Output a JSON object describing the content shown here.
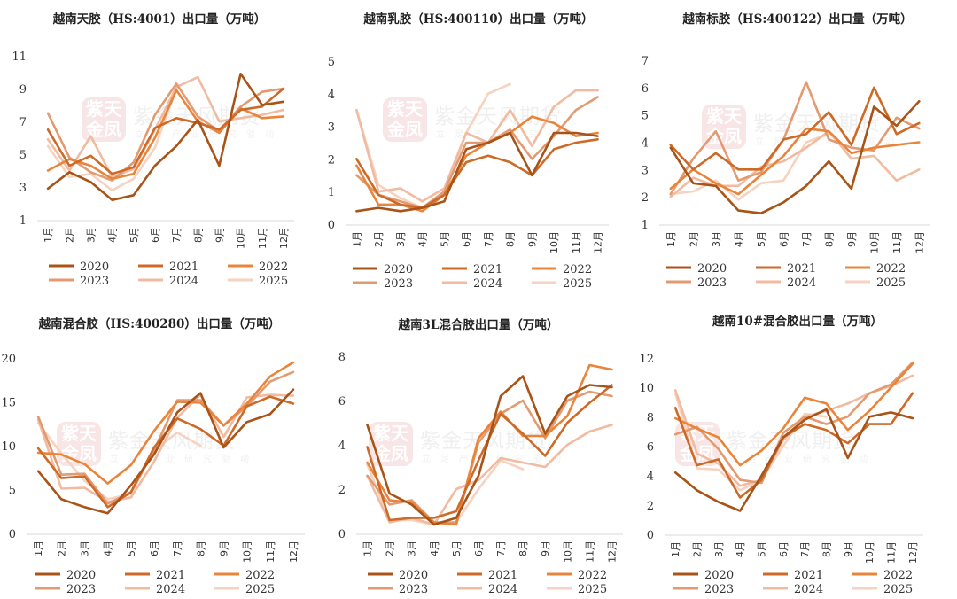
{
  "colors": {
    "2020": "#A85318",
    "2021": "#CD6A28",
    "2022": "#E9843A",
    "2023": "#E49A70",
    "2024": "#F0BBA0",
    "2025": "#F6D2C0"
  },
  "watermark": {
    "seal": "紫天金凤",
    "brand": "紫金天风期货",
    "slogan": "立足产业研究驱动"
  },
  "months": [
    "1月",
    "2月",
    "3月",
    "4月",
    "5月",
    "6月",
    "7月",
    "8月",
    "9月",
    "10月",
    "11月",
    "12月"
  ],
  "chart_data": [
    {
      "type": "line",
      "title": "越南天胶（HS:4001）出口量（万吨）",
      "ylim": [
        1,
        11
      ],
      "yticks": [
        1,
        3,
        5,
        7,
        9,
        11
      ],
      "legend_position": "bottom",
      "series": [
        {
          "name": "2020",
          "values": [
            2.9,
            3.9,
            3.3,
            2.2,
            2.5,
            4.3,
            5.5,
            7.1,
            4.3,
            9.9,
            8.0,
            8.2
          ]
        },
        {
          "name": "2021",
          "values": [
            6.5,
            4.3,
            4.9,
            3.8,
            4.2,
            6.6,
            7.2,
            6.9,
            6.5,
            7.7,
            7.9,
            9.0
          ]
        },
        {
          "name": "2022",
          "values": [
            4.0,
            4.7,
            4.3,
            3.5,
            3.8,
            6.0,
            8.9,
            7.0,
            6.3,
            7.8,
            7.2,
            7.3
          ]
        },
        {
          "name": "2023",
          "values": [
            7.5,
            4.8,
            3.9,
            3.4,
            4.5,
            7.4,
            9.3,
            7.3,
            6.4,
            7.9,
            8.8,
            9.0
          ]
        },
        {
          "name": "2024",
          "values": [
            5.9,
            4.0,
            6.1,
            3.6,
            4.1,
            6.5,
            9.1,
            9.7,
            7.0,
            7.2,
            7.4,
            7.7
          ]
        },
        {
          "name": "2025",
          "values": [
            5.5,
            3.6,
            3.8,
            2.8,
            3.5,
            5.4,
            9.0
          ]
        }
      ]
    },
    {
      "type": "line",
      "title": "越南乳胶（HS:400110）出口量（万吨）",
      "ylim": [
        0,
        5
      ],
      "yticks": [
        0,
        1,
        2,
        3,
        4,
        5
      ],
      "legend_position": "bottom",
      "series": [
        {
          "name": "2020",
          "values": [
            0.4,
            0.5,
            0.4,
            0.5,
            0.7,
            2.3,
            2.5,
            2.8,
            1.5,
            2.8,
            2.8,
            2.7
          ]
        },
        {
          "name": "2021",
          "values": [
            2.0,
            0.9,
            0.6,
            0.5,
            0.9,
            1.9,
            2.1,
            1.9,
            1.5,
            2.3,
            2.5,
            2.6
          ]
        },
        {
          "name": "2022",
          "values": [
            1.8,
            0.6,
            0.6,
            0.4,
            0.9,
            2.1,
            2.5,
            2.8,
            3.3,
            3.1,
            2.7,
            2.8
          ]
        },
        {
          "name": "2023",
          "values": [
            1.5,
            0.9,
            0.7,
            0.5,
            1.0,
            2.5,
            2.5,
            2.9,
            2.0,
            2.7,
            3.5,
            3.9
          ]
        },
        {
          "name": "2024",
          "values": [
            3.5,
            1.0,
            1.1,
            0.7,
            1.1,
            2.8,
            2.5,
            3.5,
            2.4,
            3.6,
            4.1,
            4.1
          ]
        },
        {
          "name": "2025",
          "values": [
            3.5,
            1.2,
            0.8,
            0.5,
            0.9,
            2.8,
            4.0,
            4.3
          ]
        }
      ]
    },
    {
      "type": "line",
      "title": "越南标胶（HS:400122）出口量（万吨）",
      "ylim": [
        1,
        7
      ],
      "yticks": [
        1,
        2,
        3,
        4,
        5,
        6,
        7
      ],
      "legend_position": "bottom",
      "series": [
        {
          "name": "2020",
          "values": [
            3.8,
            2.5,
            2.4,
            1.5,
            1.4,
            1.8,
            2.4,
            3.3,
            2.3,
            5.3,
            4.6,
            5.5
          ]
        },
        {
          "name": "2021",
          "values": [
            3.9,
            3.0,
            3.6,
            3.0,
            3.0,
            4.1,
            4.3,
            5.1,
            3.9,
            6.0,
            4.3,
            4.7
          ]
        },
        {
          "name": "2022",
          "values": [
            2.3,
            3.0,
            2.5,
            2.1,
            2.8,
            3.5,
            4.5,
            4.4,
            3.6,
            3.8,
            3.9,
            4.0
          ]
        },
        {
          "name": "2023",
          "values": [
            2.1,
            3.4,
            4.4,
            2.6,
            2.9,
            4.1,
            6.2,
            4.1,
            3.8,
            3.7,
            4.9,
            4.5
          ]
        },
        {
          "name": "2024",
          "values": [
            2.0,
            2.7,
            2.4,
            2.4,
            3.1,
            3.3,
            3.8,
            4.4,
            3.4,
            3.5,
            2.6,
            3.0
          ]
        },
        {
          "name": "2025",
          "values": [
            2.1,
            2.2,
            2.6,
            1.9,
            2.5,
            2.6,
            4.0,
            4.3
          ]
        }
      ]
    },
    {
      "type": "line",
      "title": "越南混合胶（HS:400280）出口量（万吨）",
      "ylim": [
        0,
        20
      ],
      "yticks": [
        0,
        5,
        10,
        15,
        20
      ],
      "legend_position": "bottom",
      "series": [
        {
          "name": "2020",
          "values": [
            7.1,
            3.9,
            3.0,
            2.3,
            5.5,
            9.0,
            13.8,
            16.0,
            9.8,
            12.7,
            13.6,
            16.4
          ]
        },
        {
          "name": "2021",
          "values": [
            9.7,
            6.3,
            6.5,
            3.0,
            4.7,
            9.8,
            13.1,
            11.9,
            10.0,
            14.5,
            15.6,
            14.8
          ]
        },
        {
          "name": "2022",
          "values": [
            9.2,
            9.0,
            7.9,
            5.7,
            7.8,
            11.7,
            15.0,
            14.9,
            12.3,
            14.8,
            17.9,
            19.5
          ]
        },
        {
          "name": "2023",
          "values": [
            13.3,
            6.7,
            6.8,
            3.4,
            4.7,
            9.5,
            15.2,
            15.2,
            12.3,
            14.5,
            17.3,
            18.4
          ]
        },
        {
          "name": "2024",
          "values": [
            13.0,
            5.1,
            5.2,
            3.6,
            4.1,
            8.2,
            13.2,
            15.8,
            11.0,
            15.5,
            15.8,
            15.7
          ]
        },
        {
          "name": "2025",
          "values": [
            12.6,
            9.1,
            6.0,
            3.9,
            4.5,
            9.5,
            11.5,
            10.0
          ]
        }
      ]
    },
    {
      "type": "line",
      "title": "越南3L混合胶出口量（万吨）",
      "ylim": [
        0,
        8
      ],
      "yticks": [
        0,
        2,
        4,
        6,
        8
      ],
      "legend_position": "bottom",
      "series": [
        {
          "name": "2020",
          "values": [
            4.9,
            1.8,
            1.3,
            0.4,
            0.7,
            2.6,
            6.2,
            7.1,
            4.5,
            6.2,
            6.7,
            6.6
          ]
        },
        {
          "name": "2021",
          "values": [
            3.9,
            0.6,
            0.7,
            0.7,
            1.0,
            3.3,
            5.4,
            4.5,
            3.5,
            5.0,
            5.9,
            6.7
          ]
        },
        {
          "name": "2022",
          "values": [
            3.2,
            1.5,
            1.4,
            0.5,
            0.4,
            4.3,
            5.5,
            4.4,
            4.4,
            5.3,
            7.6,
            7.4
          ]
        },
        {
          "name": "2023",
          "values": [
            2.6,
            1.3,
            1.5,
            0.5,
            0.5,
            4.1,
            5.4,
            6.0,
            4.3,
            6.0,
            6.4,
            6.2
          ]
        },
        {
          "name": "2024",
          "values": [
            2.6,
            0.5,
            0.7,
            0.4,
            2.0,
            2.4,
            3.4,
            3.2,
            3.0,
            4.0,
            4.6,
            4.9
          ]
        },
        {
          "name": "2025",
          "values": [
            3.1,
            0.6,
            0.6,
            0.4,
            0.5,
            2.0,
            3.3,
            2.9
          ]
        }
      ]
    },
    {
      "type": "line",
      "title": "越南10#混合胶出口量（万吨）",
      "ylim": [
        0,
        12
      ],
      "yticks": [
        0,
        2,
        4,
        6,
        8,
        10,
        12
      ],
      "legend_position": "bottom",
      "series": [
        {
          "name": "2020",
          "values": [
            4.2,
            3.0,
            2.2,
            1.6,
            4.0,
            6.6,
            7.8,
            8.5,
            5.2,
            8.0,
            8.3,
            7.9
          ]
        },
        {
          "name": "2021",
          "values": [
            8.6,
            4.7,
            5.1,
            2.5,
            3.7,
            6.6,
            7.5,
            7.1,
            6.2,
            7.5,
            7.5,
            9.6
          ]
        },
        {
          "name": "2022",
          "values": [
            7.9,
            7.2,
            6.6,
            4.7,
            5.7,
            7.2,
            9.3,
            8.9,
            7.1,
            8.4,
            10.0,
            11.6
          ]
        },
        {
          "name": "2023",
          "values": [
            6.8,
            7.3,
            5.8,
            3.7,
            3.5,
            6.9,
            8.0,
            7.5,
            8.0,
            9.6,
            10.2,
            11.7
          ]
        },
        {
          "name": "2024",
          "values": [
            9.8,
            5.5,
            4.8,
            3.3,
            3.7,
            6.4,
            8.0,
            8.4,
            8.9,
            9.6,
            10.1,
            10.8
          ]
        },
        {
          "name": "2025",
          "values": [
            9.6,
            4.5,
            4.4,
            3.0,
            3.7,
            6.0,
            8.2,
            8.0
          ]
        }
      ]
    }
  ]
}
